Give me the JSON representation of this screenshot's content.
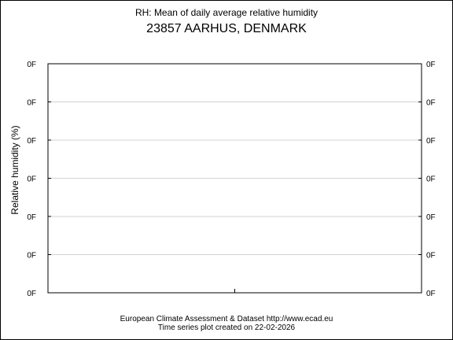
{
  "chart_data": {
    "type": "line",
    "title": "RH: Mean of daily average relative humidity",
    "subtitle": "23857 AARHUS, DENMARK",
    "xlabel": "",
    "ylabel": "Relative humidity (%)",
    "y_tick_labels": [
      "0F",
      "0F",
      "0F",
      "0F",
      "0F",
      "0F",
      "0F"
    ],
    "y2_tick_labels": [
      "0F",
      "0F",
      "0F",
      "0F",
      "0F",
      "0F",
      "0F"
    ],
    "x_tick_count": 1,
    "grid": true,
    "series": []
  },
  "footer": {
    "line1": "European Climate Assessment & Dataset  http://www.ecad.eu",
    "line2": "Time series plot created on 22-02-2026"
  },
  "colors": {
    "grid": "#d3d3d3",
    "axes": "#000000",
    "background": "#ffffff"
  }
}
